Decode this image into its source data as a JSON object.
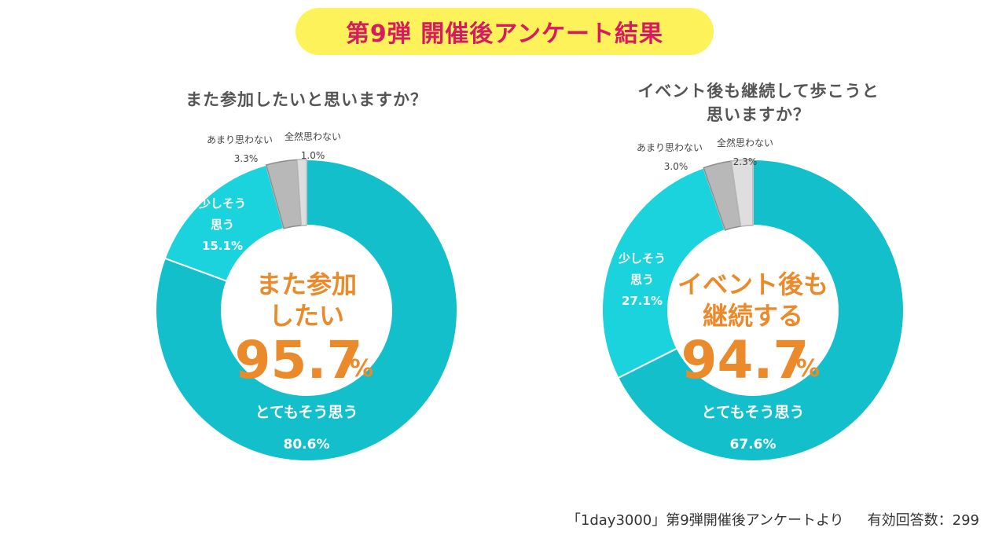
{
  "header": {
    "title": "第9弾 開催後アンケート結果"
  },
  "colors": {
    "strong": "#12bfcb",
    "some": "#1bd3dc",
    "not_much": "#b8b8b8",
    "not_at_all": "#dedede",
    "stroke": "#0fa7b2",
    "accent": "#ea8a2a"
  },
  "chart_data": [
    {
      "type": "pie",
      "variant": "donut",
      "title": "また参加したいと思いますか？",
      "slices": [
        {
          "label": "とてもそう思う",
          "value": 80.6,
          "display": "80.6%"
        },
        {
          "label": "少しそう\n思う",
          "value": 15.1,
          "display": "15.1%"
        },
        {
          "label": "あまり思わない",
          "value": 3.3,
          "display": "3.3%"
        },
        {
          "label": "全然思わない",
          "value": 1.0,
          "display": "1.0%"
        }
      ],
      "center": {
        "line1": "また参加",
        "line2": "したい",
        "value": "95.7",
        "unit": "%"
      }
    },
    {
      "type": "pie",
      "variant": "donut",
      "title": "イベント後も継続して歩こうと\n思いますか？",
      "slices": [
        {
          "label": "とてもそう思う",
          "value": 67.6,
          "display": "67.6%"
        },
        {
          "label": "少しそう\n思う",
          "value": 27.1,
          "display": "27.1%"
        },
        {
          "label": "あまり思わない",
          "value": 3.0,
          "display": "3.0%"
        },
        {
          "label": "全然思わない",
          "value": 2.3,
          "display": "2.3%"
        }
      ],
      "center": {
        "line1": "イベント後も",
        "line2": "継続する",
        "value": "94.7",
        "unit": "%"
      }
    }
  ],
  "footer": {
    "source": "「1day3000」第9弾開催後アンケートより",
    "responses": "有効回答数：299"
  }
}
